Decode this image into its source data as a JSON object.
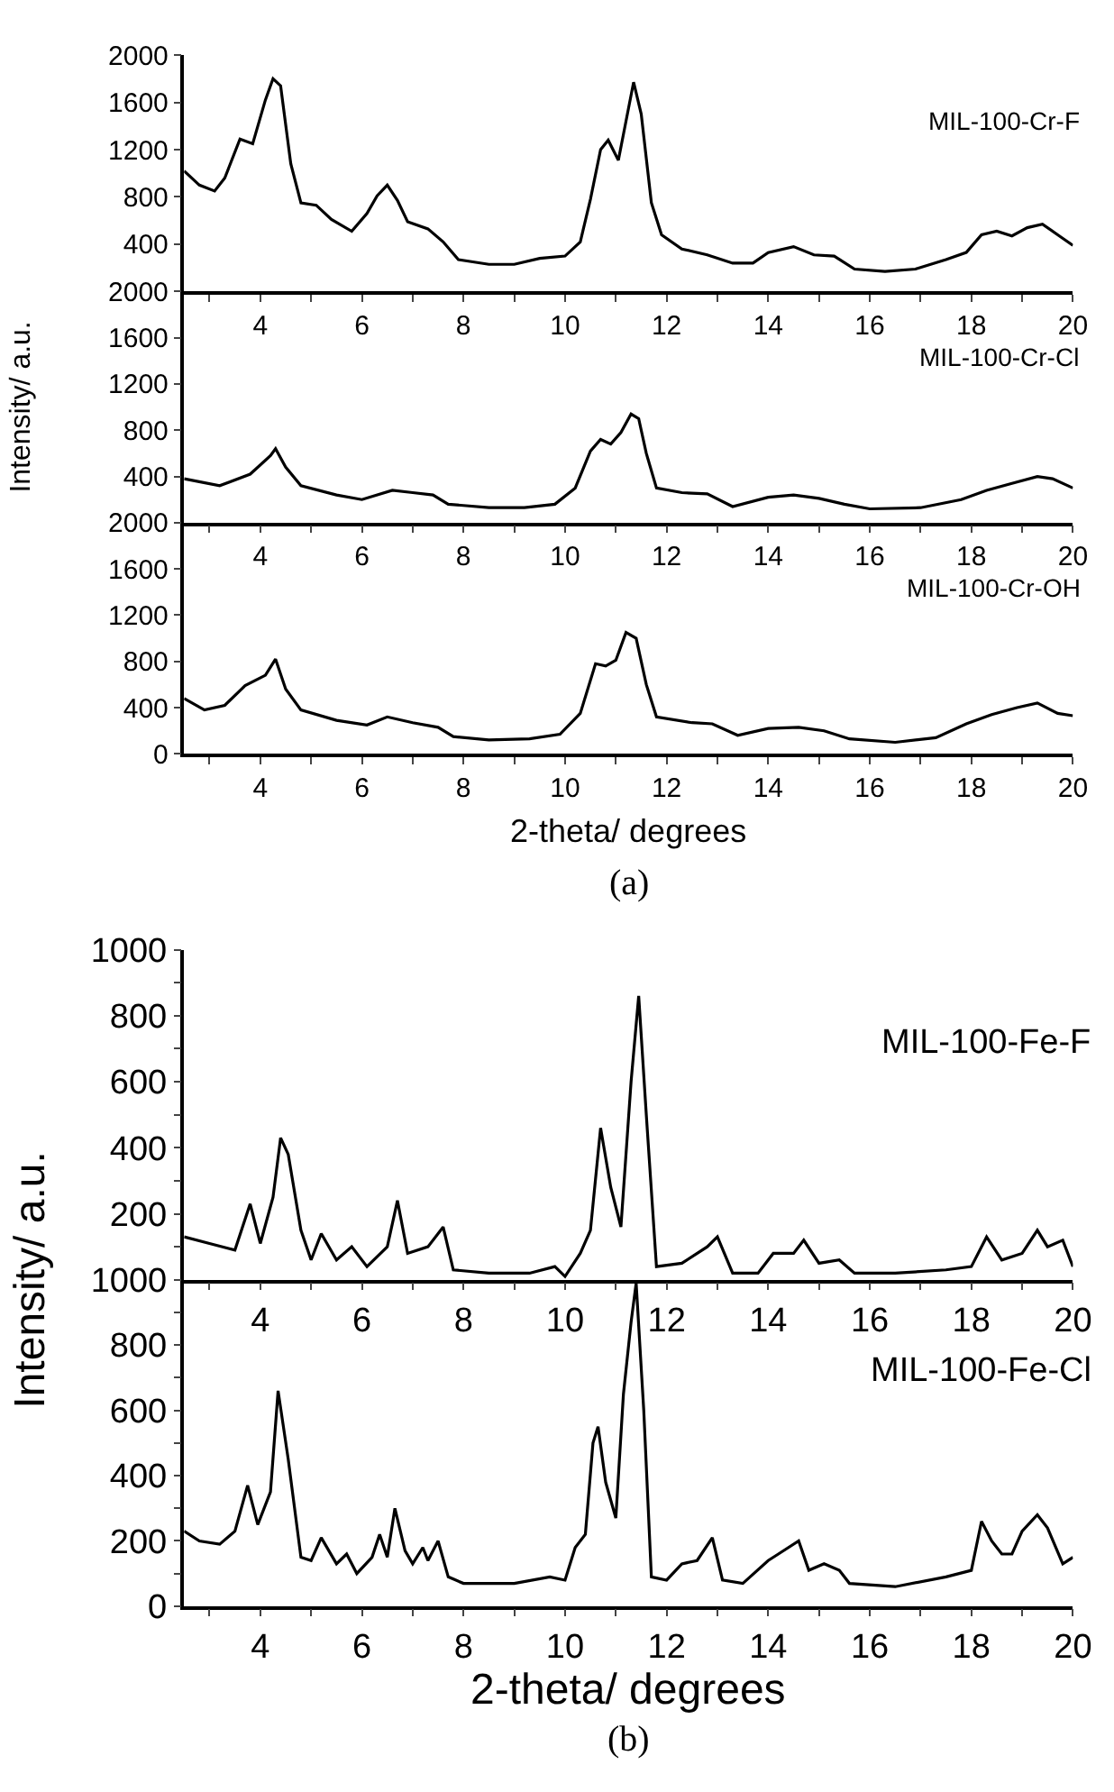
{
  "chart_data": [
    {
      "type": "line",
      "xlim": [
        2.5,
        20
      ],
      "xticks": [
        {
          "value": 3,
          "label": null
        },
        4,
        {
          "value": 5,
          "label": null
        },
        6,
        {
          "value": 7,
          "label": null
        },
        8,
        {
          "value": 9,
          "label": null
        },
        10,
        {
          "value": 11,
          "label": null
        },
        12,
        {
          "value": 13,
          "label": null
        },
        14,
        {
          "value": 15,
          "label": null
        },
        16,
        {
          "value": 17,
          "label": null
        },
        18,
        {
          "value": 19,
          "label": null
        },
        20
      ],
      "ylim": [
        0,
        2000
      ],
      "yticks": [
        {
          "value": 0,
          "label": null
        },
        400,
        800,
        1200,
        1600,
        2000
      ],
      "x": [
        2.5,
        2.8,
        3.1,
        3.3,
        3.6,
        3.85,
        4.1,
        4.25,
        4.4,
        4.6,
        4.8,
        5.1,
        5.4,
        5.8,
        6.1,
        6.3,
        6.5,
        6.7,
        6.9,
        7.3,
        7.6,
        7.9,
        8.5,
        9.0,
        9.5,
        10.0,
        10.3,
        10.5,
        10.7,
        10.85,
        11.05,
        11.2,
        11.35,
        11.5,
        11.7,
        11.9,
        12.3,
        12.8,
        13.3,
        13.7,
        14.0,
        14.5,
        14.9,
        15.3,
        15.7,
        16.3,
        16.9,
        17.5,
        17.9,
        18.2,
        18.5,
        18.8,
        19.1,
        19.4,
        19.7,
        20.0
      ],
      "series": [
        {
          "name": "MIL-100-Cr-F",
          "color": "#000000",
          "values": [
            1020,
            900,
            850,
            960,
            1290,
            1250,
            1620,
            1800,
            1740,
            1080,
            750,
            730,
            610,
            510,
            660,
            810,
            900,
            770,
            590,
            530,
            420,
            270,
            230,
            230,
            280,
            300,
            420,
            780,
            1200,
            1280,
            1110,
            1440,
            1770,
            1500,
            750,
            480,
            360,
            310,
            240,
            240,
            330,
            380,
            310,
            300,
            190,
            170,
            190,
            270,
            330,
            480,
            510,
            470,
            540,
            570,
            480,
            390
          ]
        }
      ]
    },
    {
      "type": "line",
      "xlim": [
        2.5,
        20
      ],
      "xticks": [
        {
          "value": 3,
          "label": null
        },
        4,
        {
          "value": 5,
          "label": null
        },
        6,
        {
          "value": 7,
          "label": null
        },
        8,
        {
          "value": 9,
          "label": null
        },
        10,
        {
          "value": 11,
          "label": null
        },
        12,
        {
          "value": 13,
          "label": null
        },
        14,
        {
          "value": 15,
          "label": null
        },
        16,
        {
          "value": 17,
          "label": null
        },
        18,
        {
          "value": 19,
          "label": null
        },
        20
      ],
      "ylim": [
        0,
        2000
      ],
      "yticks": [
        {
          "value": 0,
          "label": null
        },
        400,
        800,
        1200,
        1600,
        2000
      ],
      "ylabel": "Intensity/ a.u.",
      "x": [
        2.5,
        3.2,
        3.8,
        4.2,
        4.3,
        4.5,
        4.8,
        5.5,
        6.0,
        6.6,
        7.0,
        7.4,
        7.7,
        8.5,
        9.2,
        9.8,
        10.2,
        10.5,
        10.7,
        10.9,
        11.1,
        11.3,
        11.45,
        11.6,
        11.8,
        12.3,
        12.8,
        13.3,
        14.0,
        14.5,
        15.0,
        15.5,
        16.0,
        17.0,
        17.8,
        18.3,
        18.8,
        19.3,
        19.6,
        20.0
      ],
      "series": [
        {
          "name": "MIL-100-Cr-Cl",
          "color": "#000000",
          "values": [
            380,
            320,
            420,
            580,
            640,
            480,
            320,
            240,
            200,
            280,
            260,
            240,
            160,
            130,
            130,
            160,
            300,
            620,
            720,
            680,
            780,
            940,
            900,
            600,
            300,
            260,
            250,
            140,
            220,
            240,
            210,
            160,
            120,
            130,
            200,
            280,
            340,
            400,
            380,
            300
          ]
        }
      ]
    },
    {
      "type": "line",
      "xlim": [
        2.5,
        20
      ],
      "xticks": [
        {
          "value": 3,
          "label": null
        },
        4,
        {
          "value": 5,
          "label": null
        },
        6,
        {
          "value": 7,
          "label": null
        },
        8,
        {
          "value": 9,
          "label": null
        },
        10,
        {
          "value": 11,
          "label": null
        },
        12,
        {
          "value": 13,
          "label": null
        },
        14,
        {
          "value": 15,
          "label": null
        },
        16,
        {
          "value": 17,
          "label": null
        },
        18,
        {
          "value": 19,
          "label": null
        },
        20
      ],
      "ylim": [
        0,
        2000
      ],
      "yticks": [
        0,
        400,
        800,
        1200,
        1600,
        2000
      ],
      "xlabel": "2-theta/ degrees",
      "annotations": [
        "(a)"
      ],
      "x": [
        2.5,
        2.9,
        3.3,
        3.7,
        4.1,
        4.3,
        4.5,
        4.8,
        5.5,
        6.1,
        6.5,
        7.0,
        7.5,
        7.8,
        8.5,
        9.3,
        9.9,
        10.3,
        10.6,
        10.8,
        11.0,
        11.2,
        11.4,
        11.6,
        11.8,
        12.5,
        12.9,
        13.4,
        14.0,
        14.6,
        15.1,
        15.6,
        16.5,
        17.3,
        17.9,
        18.4,
        18.9,
        19.3,
        19.7,
        20.0
      ],
      "series": [
        {
          "name": "MIL-100-Cr-OH",
          "color": "#000000",
          "values": [
            480,
            380,
            420,
            590,
            680,
            820,
            560,
            380,
            290,
            250,
            320,
            270,
            230,
            150,
            120,
            130,
            170,
            350,
            780,
            760,
            810,
            1050,
            1000,
            600,
            320,
            270,
            260,
            160,
            220,
            230,
            200,
            130,
            100,
            140,
            260,
            340,
            400,
            440,
            350,
            330
          ]
        }
      ]
    },
    {
      "type": "line",
      "xlim": [
        2.5,
        20
      ],
      "xticks": [
        {
          "value": 3,
          "label": null
        },
        4,
        {
          "value": 5,
          "label": null
        },
        6,
        {
          "value": 7,
          "label": null
        },
        8,
        {
          "value": 9,
          "label": null
        },
        10,
        {
          "value": 11,
          "label": null
        },
        12,
        {
          "value": 13,
          "label": null
        },
        14,
        {
          "value": 15,
          "label": null
        },
        16,
        {
          "value": 17,
          "label": null
        },
        18,
        {
          "value": 19,
          "label": null
        },
        20
      ],
      "ylim": [
        0,
        1000
      ],
      "yticks": [
        {
          "value": 0,
          "label": null
        },
        {
          "value": 100,
          "label": null
        },
        200,
        {
          "value": 300,
          "label": null
        },
        400,
        {
          "value": 500,
          "label": null
        },
        600,
        {
          "value": 700,
          "label": null
        },
        800,
        {
          "value": 900,
          "label": null
        },
        1000
      ],
      "ylabel": "Intensity/ a.u.",
      "x": [
        2.5,
        3.0,
        3.5,
        3.8,
        4.0,
        4.25,
        4.4,
        4.55,
        4.8,
        5.0,
        5.2,
        5.5,
        5.8,
        6.1,
        6.5,
        6.7,
        6.9,
        7.3,
        7.6,
        7.8,
        8.5,
        9.3,
        9.8,
        10.0,
        10.3,
        10.5,
        10.7,
        10.9,
        11.1,
        11.3,
        11.45,
        11.6,
        11.8,
        12.3,
        12.8,
        13.0,
        13.3,
        13.8,
        14.1,
        14.5,
        14.7,
        15.0,
        15.4,
        15.7,
        16.5,
        17.5,
        18.0,
        18.3,
        18.6,
        19.0,
        19.3,
        19.5,
        19.8,
        20.0
      ],
      "series": [
        {
          "name": "MIL-100-Fe-F",
          "color": "#000000",
          "values": [
            130,
            110,
            90,
            230,
            110,
            250,
            430,
            380,
            150,
            60,
            140,
            60,
            100,
            40,
            100,
            240,
            80,
            100,
            160,
            30,
            20,
            20,
            40,
            10,
            80,
            150,
            460,
            280,
            160,
            600,
            860,
            500,
            40,
            50,
            100,
            130,
            20,
            20,
            80,
            80,
            120,
            50,
            60,
            20,
            20,
            30,
            40,
            130,
            60,
            80,
            150,
            100,
            120,
            40
          ]
        }
      ]
    },
    {
      "type": "line",
      "xlim": [
        2.5,
        20
      ],
      "xticks": [
        {
          "value": 3,
          "label": null
        },
        4,
        {
          "value": 5,
          "label": null
        },
        6,
        {
          "value": 7,
          "label": null
        },
        8,
        {
          "value": 9,
          "label": null
        },
        10,
        {
          "value": 11,
          "label": null
        },
        12,
        {
          "value": 13,
          "label": null
        },
        14,
        {
          "value": 15,
          "label": null
        },
        16,
        {
          "value": 17,
          "label": null
        },
        18,
        {
          "value": 19,
          "label": null
        },
        20
      ],
      "ylim": [
        0,
        1000
      ],
      "yticks": [
        0,
        {
          "value": 100,
          "label": null
        },
        200,
        {
          "value": 300,
          "label": null
        },
        400,
        {
          "value": 500,
          "label": null
        },
        600,
        {
          "value": 700,
          "label": null
        },
        800,
        {
          "value": 900,
          "label": null
        },
        1000
      ],
      "xlabel": "2-theta/ degrees",
      "annotations": [
        "(b)"
      ],
      "x": [
        2.5,
        2.8,
        3.2,
        3.5,
        3.75,
        3.95,
        4.2,
        4.35,
        4.55,
        4.8,
        5.0,
        5.2,
        5.5,
        5.7,
        5.9,
        6.2,
        6.35,
        6.5,
        6.65,
        6.85,
        7.0,
        7.2,
        7.3,
        7.5,
        7.7,
        8.0,
        9.0,
        9.7,
        10.0,
        10.2,
        10.4,
        10.55,
        10.65,
        10.8,
        11.0,
        11.15,
        11.3,
        11.4,
        11.55,
        11.7,
        12.0,
        12.3,
        12.6,
        12.9,
        13.1,
        13.5,
        14.0,
        14.2,
        14.6,
        14.8,
        15.1,
        15.4,
        15.6,
        16.5,
        17.5,
        18.0,
        18.2,
        18.4,
        18.6,
        18.8,
        19.0,
        19.3,
        19.5,
        19.8,
        20.0
      ],
      "series": [
        {
          "name": "MIL-100-Fe-Cl",
          "color": "#000000",
          "values": [
            230,
            200,
            190,
            230,
            370,
            250,
            350,
            660,
            450,
            150,
            140,
            210,
            130,
            160,
            100,
            150,
            220,
            150,
            300,
            170,
            130,
            180,
            140,
            200,
            90,
            70,
            70,
            90,
            80,
            180,
            220,
            500,
            550,
            380,
            270,
            650,
            870,
            990,
            600,
            90,
            80,
            130,
            140,
            210,
            80,
            70,
            140,
            160,
            200,
            110,
            130,
            110,
            70,
            60,
            90,
            110,
            260,
            200,
            160,
            160,
            230,
            280,
            240,
            130,
            150
          ]
        }
      ]
    }
  ]
}
